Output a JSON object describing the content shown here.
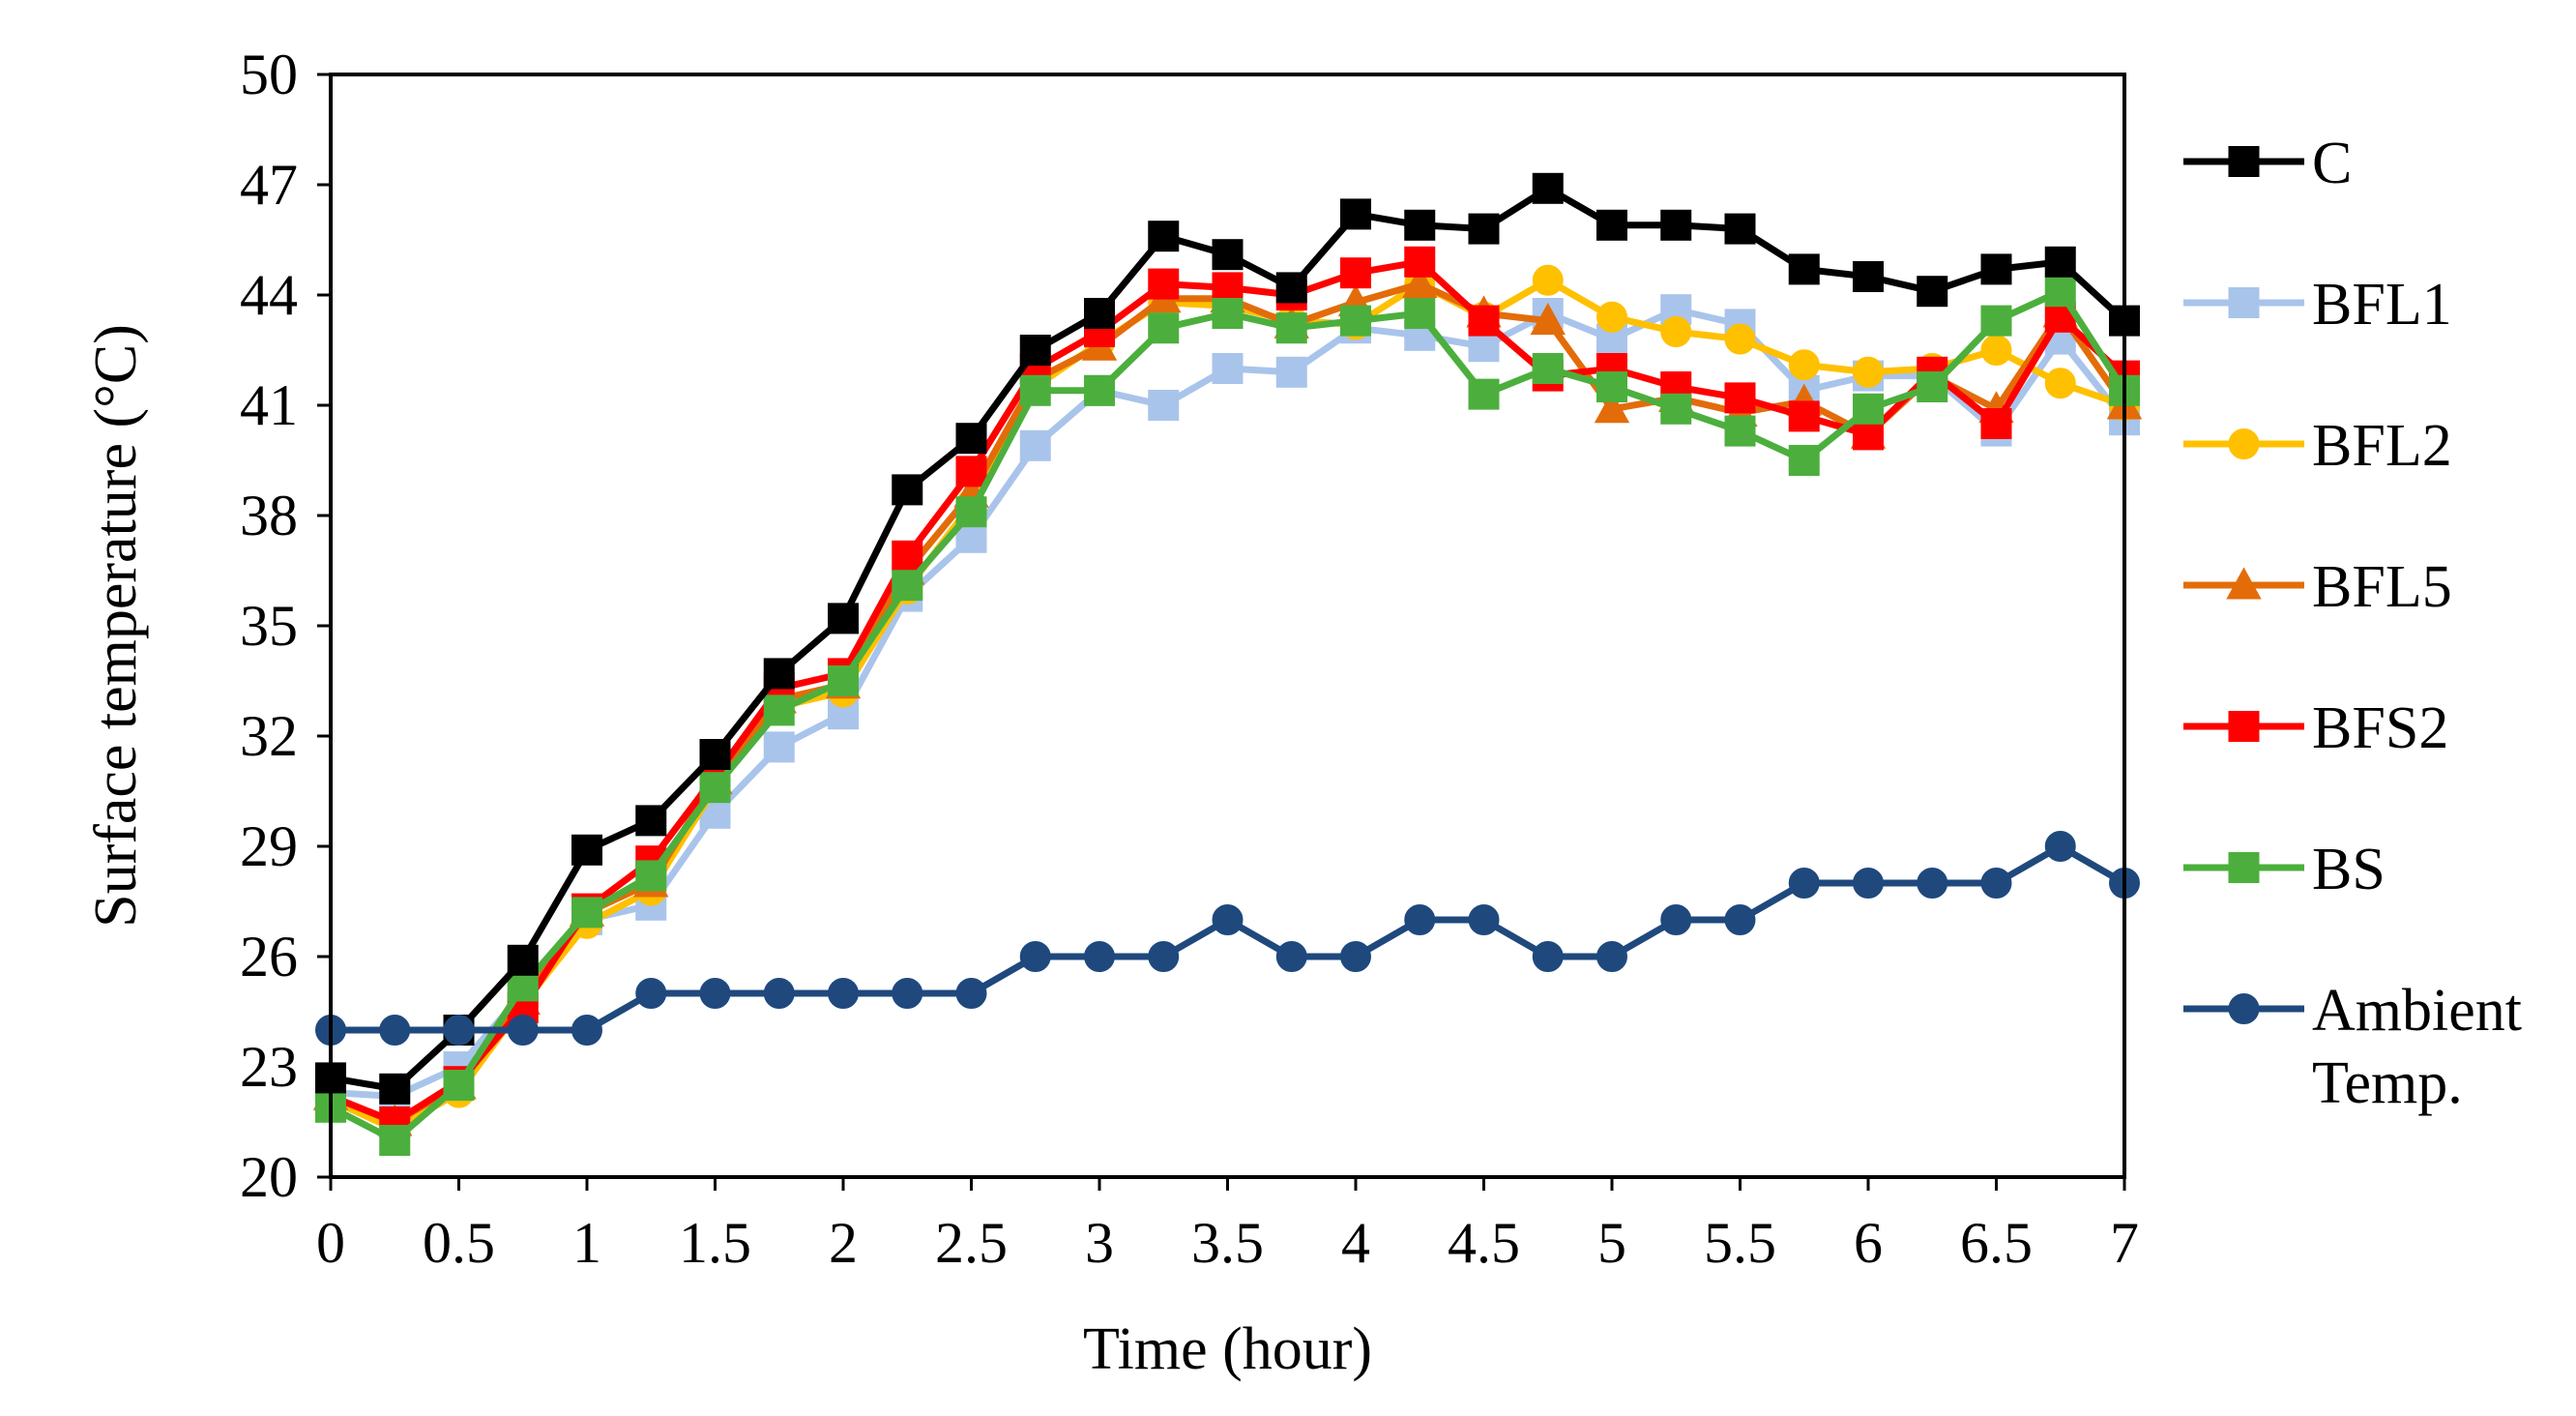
{
  "chart_data": {
    "type": "line",
    "title": "",
    "xlabel": "Time (hour)",
    "ylabel": "Surface temperature (°C)",
    "xlim": [
      0,
      7
    ],
    "ylim": [
      20,
      50
    ],
    "x_ticks": [
      0,
      0.5,
      1,
      1.5,
      2,
      2.5,
      3,
      3.5,
      4,
      4.5,
      5,
      5.5,
      6,
      6.5,
      7
    ],
    "x_tick_labels": [
      "0",
      "0.5",
      "1",
      "1.5",
      "2",
      "2.5",
      "3",
      "3.5",
      "4",
      "4.5",
      "5",
      "5.5",
      "6",
      "6.5",
      "7"
    ],
    "y_ticks": [
      20,
      23,
      26,
      29,
      32,
      35,
      38,
      41,
      44,
      47,
      50
    ],
    "y_tick_labels": [
      "20",
      "23",
      "26",
      "29",
      "32",
      "35",
      "38",
      "41",
      "44",
      "47",
      "50"
    ],
    "grid": false,
    "legend_position": "right",
    "x": [
      0,
      0.25,
      0.5,
      0.75,
      1,
      1.25,
      1.5,
      1.75,
      2,
      2.25,
      2.5,
      2.75,
      3,
      3.25,
      3.5,
      3.75,
      4,
      4.25,
      4.5,
      4.75,
      5,
      5.25,
      5.5,
      5.75,
      6,
      6.25,
      6.5,
      6.75,
      7
    ],
    "series": [
      {
        "name": "BFL1",
        "color": "#A9C4EB",
        "marker": "square",
        "values": [
          22.3,
          22.2,
          23.0,
          25.0,
          27.0,
          27.4,
          29.9,
          31.7,
          32.6,
          35.8,
          37.4,
          39.9,
          41.4,
          41.0,
          42.0,
          41.9,
          43.1,
          42.9,
          42.6,
          43.5,
          42.8,
          43.6,
          43.2,
          41.4,
          41.8,
          41.8,
          40.3,
          42.8,
          40.6
        ]
      },
      {
        "name": "BFL2",
        "color": "#FFC000",
        "marker": "circle",
        "values": [
          22.1,
          21.3,
          22.3,
          24.7,
          26.9,
          27.8,
          30.6,
          32.8,
          33.2,
          36.0,
          38.3,
          41.5,
          42.7,
          43.8,
          43.7,
          43.3,
          43.2,
          44.3,
          43.4,
          44.4,
          43.4,
          43.0,
          42.8,
          42.1,
          41.9,
          42.0,
          42.5,
          41.6,
          41.0
        ]
      },
      {
        "name": "BFL5",
        "color": "#E36C09",
        "marker": "triangle",
        "values": [
          22.2,
          21.5,
          22.5,
          24.8,
          27.2,
          28.0,
          30.8,
          33.0,
          33.4,
          36.5,
          38.6,
          41.7,
          42.6,
          43.9,
          43.9,
          43.2,
          43.8,
          44.3,
          43.5,
          43.3,
          40.9,
          41.2,
          40.8,
          41.1,
          40.2,
          41.8,
          40.9,
          43.5,
          41.0
        ]
      },
      {
        "name": "BFS2",
        "color": "#FF0000",
        "marker": "square",
        "values": [
          22.2,
          21.5,
          22.6,
          24.6,
          27.3,
          28.6,
          30.9,
          33.3,
          33.7,
          36.9,
          39.2,
          42.0,
          43.0,
          44.3,
          44.2,
          44.0,
          44.6,
          44.9,
          43.3,
          41.8,
          42.0,
          41.5,
          41.2,
          40.7,
          40.2,
          41.9,
          40.5,
          43.4,
          41.8
        ]
      },
      {
        "name": "BS",
        "color": "#4CAF3D",
        "marker": "square",
        "values": [
          21.9,
          21.0,
          22.5,
          25.2,
          27.2,
          28.2,
          30.6,
          32.7,
          33.5,
          36.1,
          38.1,
          41.4,
          41.4,
          43.1,
          43.5,
          43.1,
          43.3,
          43.5,
          41.3,
          42.0,
          41.5,
          40.9,
          40.3,
          39.5,
          40.9,
          41.5,
          43.3,
          44.1,
          41.4
        ]
      },
      {
        "name": "C",
        "color": "#000000",
        "marker": "square",
        "values": [
          22.7,
          22.4,
          24.0,
          25.9,
          28.9,
          29.7,
          31.5,
          33.7,
          35.2,
          38.7,
          40.1,
          42.5,
          43.5,
          45.6,
          45.1,
          44.2,
          46.2,
          45.9,
          45.8,
          46.9,
          45.9,
          45.9,
          45.8,
          44.7,
          44.5,
          44.1,
          44.7,
          44.9,
          43.3
        ]
      },
      {
        "name": "Ambient Temp.",
        "color": "#1F497D",
        "marker": "circle",
        "values": [
          24,
          24,
          24,
          24,
          24,
          25,
          25,
          25,
          25,
          25,
          25,
          26,
          26,
          26,
          27,
          26,
          26,
          27,
          27,
          26,
          26,
          27,
          27,
          28,
          28,
          28,
          28,
          29,
          28
        ]
      }
    ],
    "legend": [
      {
        "series": "C",
        "label": "C"
      },
      {
        "series": "BFL1",
        "label": "BFL1"
      },
      {
        "series": "BFL2",
        "label": "BFL2"
      },
      {
        "series": "BFL5",
        "label": "BFL5"
      },
      {
        "series": "BFS2",
        "label": "BFS2"
      },
      {
        "series": "BS",
        "label": "BS"
      },
      {
        "series": "Ambient Temp.",
        "label": [
          "Ambient",
          "Temp."
        ]
      }
    ]
  }
}
